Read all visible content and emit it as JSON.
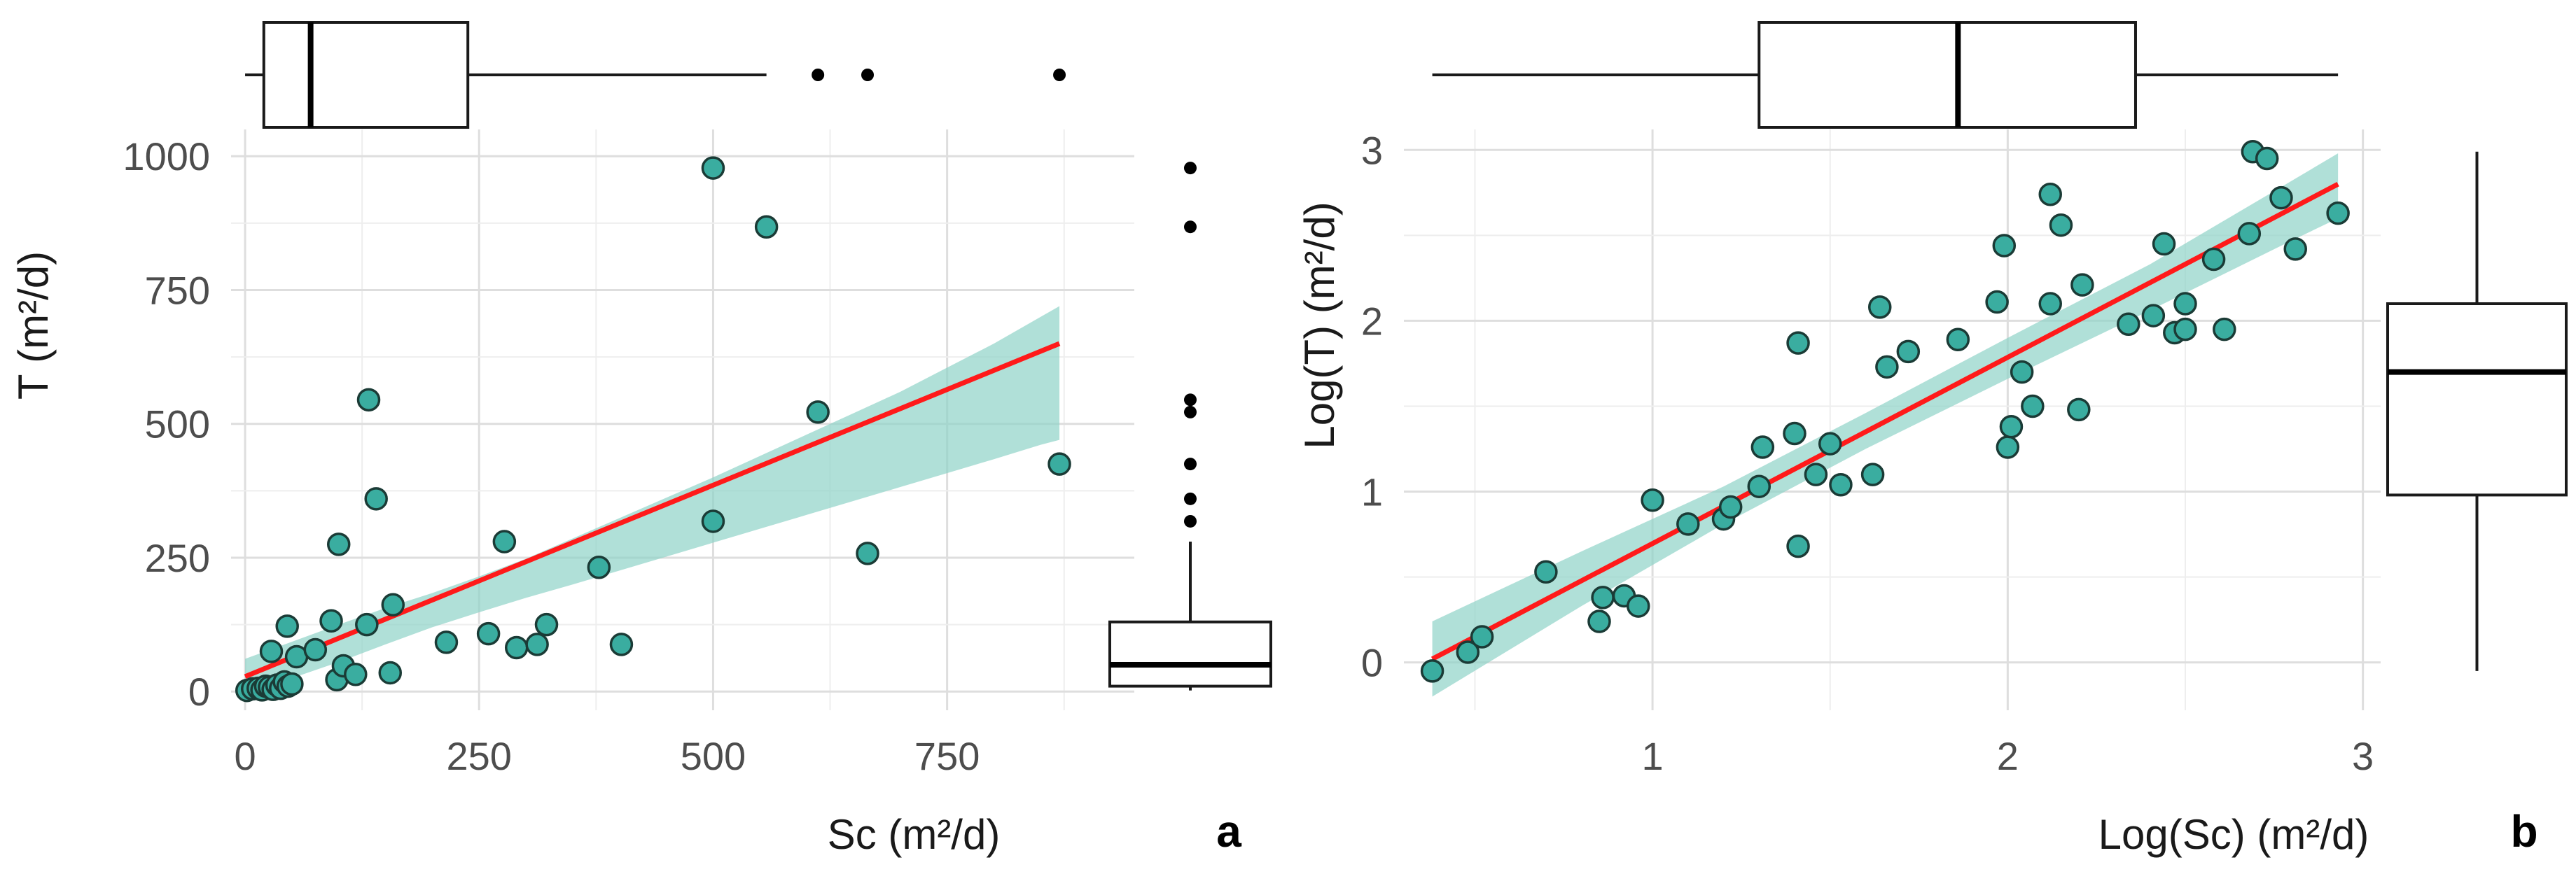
{
  "colors": {
    "point": "#3aada0",
    "ribbon": "#8fd3c8",
    "fit_line": "#ff1a1a",
    "box_stroke": "#1a1a1a"
  },
  "chart_data": [
    {
      "panel": "a",
      "type": "scatter",
      "xlabel": "Sc (m²/d)",
      "ylabel": "T (m²/d)",
      "xlim": [
        -15,
        950
      ],
      "ylim": [
        -35,
        1050
      ],
      "xticks": [
        0,
        250,
        500,
        750
      ],
      "xtick_labels": [
        "0",
        "250",
        "500",
        "750"
      ],
      "yticks": [
        0,
        250,
        500,
        750,
        1000
      ],
      "ytick_labels": [
        "0",
        "250",
        "500",
        "750",
        "1000"
      ],
      "grid": true,
      "points": [
        [
          2,
          2
        ],
        [
          8,
          5
        ],
        [
          14,
          6
        ],
        [
          18,
          3
        ],
        [
          22,
          10
        ],
        [
          26,
          8
        ],
        [
          30,
          4
        ],
        [
          34,
          12
        ],
        [
          38,
          6
        ],
        [
          42,
          18
        ],
        [
          46,
          10
        ],
        [
          50,
          14
        ],
        [
          28,
          75
        ],
        [
          45,
          122
        ],
        [
          55,
          65
        ],
        [
          75,
          78
        ],
        [
          92,
          132
        ],
        [
          100,
          275
        ],
        [
          98,
          22
        ],
        [
          105,
          48
        ],
        [
          118,
          32
        ],
        [
          132,
          545
        ],
        [
          130,
          125
        ],
        [
          140,
          360
        ],
        [
          155,
          35
        ],
        [
          158,
          162
        ],
        [
          215,
          92
        ],
        [
          260,
          108
        ],
        [
          277,
          280
        ],
        [
          290,
          82
        ],
        [
          312,
          88
        ],
        [
          322,
          125
        ],
        [
          378,
          232
        ],
        [
          402,
          88
        ],
        [
          500,
          978
        ],
        [
          500,
          318
        ],
        [
          557,
          868
        ],
        [
          612,
          522
        ],
        [
          665,
          258
        ],
        [
          870,
          425
        ]
      ],
      "fit": {
        "x": [
          0,
          870
        ],
        "y": [
          28,
          650
        ]
      },
      "ci_band": {
        "x": [
          0,
          50,
          100,
          150,
          200,
          250,
          300,
          350,
          400,
          450,
          500,
          550,
          600,
          650,
          700,
          750,
          800,
          850,
          870
        ],
        "lower": [
          -5,
          25,
          55,
          88,
          120,
          148,
          175,
          200,
          226,
          252,
          278,
          304,
          330,
          356,
          382,
          408,
          434,
          461,
          470
        ],
        "upper": [
          61,
          93,
          125,
          156,
          184,
          215,
          248,
          286,
          324,
          362,
          400,
          440,
          480,
          520,
          560,
          605,
          650,
          700,
          720
        ]
      },
      "boxplot_x": {
        "min": 0,
        "q1": 20,
        "median": 70,
        "q3": 238,
        "max": 557,
        "outliers": [
          612,
          665,
          870
        ]
      },
      "boxplot_y": {
        "min": 2,
        "q1": 10,
        "median": 50,
        "q3": 130,
        "max": 280,
        "outliers": [
          318,
          360,
          425,
          522,
          545,
          868,
          978
        ]
      }
    },
    {
      "panel": "b",
      "type": "scatter",
      "xlabel": "Log(Sc) (m²/d)",
      "ylabel": "Log(T) (m²/d)",
      "xlim": [
        0.3,
        3.05
      ],
      "ylim": [
        -0.28,
        3.12
      ],
      "xticks": [
        1,
        2,
        3
      ],
      "xtick_labels": [
        "1",
        "2",
        "3"
      ],
      "yticks": [
        0,
        1,
        2,
        3
      ],
      "ytick_labels": [
        "0",
        "1",
        "2",
        "3"
      ],
      "grid": true,
      "points": [
        [
          0.38,
          -0.05
        ],
        [
          0.48,
          0.06
        ],
        [
          0.52,
          0.15
        ],
        [
          0.7,
          0.53
        ],
        [
          0.85,
          0.24
        ],
        [
          0.86,
          0.38
        ],
        [
          0.92,
          0.39
        ],
        [
          0.96,
          0.33
        ],
        [
          1.0,
          0.95
        ],
        [
          1.1,
          0.81
        ],
        [
          1.2,
          0.84
        ],
        [
          1.22,
          0.91
        ],
        [
          1.3,
          1.03
        ],
        [
          1.31,
          1.26
        ],
        [
          1.4,
          1.34
        ],
        [
          1.41,
          0.68
        ],
        [
          1.41,
          1.87
        ],
        [
          1.46,
          1.1
        ],
        [
          1.5,
          1.28
        ],
        [
          1.53,
          1.04
        ],
        [
          1.62,
          1.1
        ],
        [
          1.64,
          2.08
        ],
        [
          1.66,
          1.73
        ],
        [
          1.72,
          1.82
        ],
        [
          1.86,
          1.89
        ],
        [
          1.97,
          2.11
        ],
        [
          1.99,
          2.44
        ],
        [
          2.0,
          1.26
        ],
        [
          2.01,
          1.38
        ],
        [
          2.04,
          1.7
        ],
        [
          2.07,
          1.5
        ],
        [
          2.12,
          2.1
        ],
        [
          2.12,
          2.74
        ],
        [
          2.15,
          2.56
        ],
        [
          2.2,
          1.48
        ],
        [
          2.21,
          2.21
        ],
        [
          2.34,
          1.98
        ],
        [
          2.41,
          2.03
        ],
        [
          2.44,
          2.45
        ],
        [
          2.47,
          1.93
        ],
        [
          2.5,
          1.95
        ],
        [
          2.5,
          2.1
        ],
        [
          2.58,
          2.36
        ],
        [
          2.61,
          1.95
        ],
        [
          2.68,
          2.51
        ],
        [
          2.69,
          2.99
        ],
        [
          2.73,
          2.95
        ],
        [
          2.77,
          2.72
        ],
        [
          2.81,
          2.42
        ],
        [
          2.93,
          2.63
        ]
      ],
      "fit": {
        "x": [
          0.38,
          2.93
        ],
        "y": [
          0.02,
          2.8
        ]
      },
      "ci_band": {
        "x": [
          0.38,
          0.8,
          1.2,
          1.6,
          2.0,
          2.4,
          2.8,
          2.93
        ],
        "lower": [
          -0.2,
          0.33,
          0.81,
          1.25,
          1.66,
          2.06,
          2.47,
          2.6
        ],
        "upper": [
          0.24,
          0.65,
          1.03,
          1.46,
          1.9,
          2.33,
          2.82,
          2.98
        ]
      },
      "boxplot_x": {
        "min": 0.38,
        "q1": 1.3,
        "median": 1.86,
        "q3": 2.36,
        "max": 2.93,
        "outliers": []
      },
      "boxplot_y": {
        "min": -0.05,
        "q1": 0.98,
        "median": 1.7,
        "q3": 2.1,
        "max": 2.99,
        "outliers": []
      }
    }
  ]
}
